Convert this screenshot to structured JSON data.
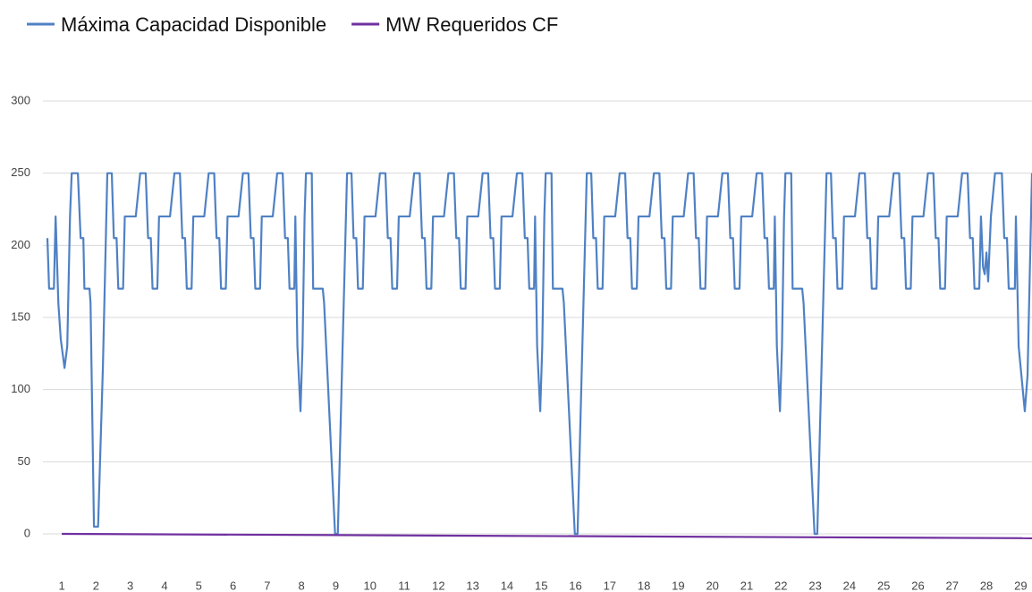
{
  "chart_data": {
    "type": "line",
    "legend": "top-left",
    "grid": true,
    "xlim": [
      0.58,
      29.33
    ],
    "xticks": [
      1,
      2,
      3,
      4,
      5,
      6,
      7,
      8,
      9,
      10,
      11,
      12,
      13,
      14,
      15,
      16,
      17,
      18,
      19,
      20,
      21,
      22,
      23,
      24,
      25,
      26,
      27,
      28,
      29
    ],
    "ylim": [
      -14,
      300
    ],
    "yticks": [
      0,
      50,
      100,
      150,
      200,
      250,
      300
    ],
    "series": [
      {
        "name": "Máxima Capacidad Disponible",
        "color": "#4f81c4",
        "x": [
          0.58,
          0.63,
          0.77,
          0.82,
          0.9,
          0.97,
          1.08,
          1.16,
          1.24,
          1.29,
          1.47,
          1.55,
          1.63,
          1.66,
          1.81,
          1.84,
          1.94,
          2.06,
          2.2,
          2.33,
          2.46,
          2.52,
          2.6,
          2.65,
          2.79,
          2.84,
          3.16,
          3.29,
          3.45,
          3.52,
          3.6,
          3.65,
          3.79,
          3.84,
          4.16,
          4.29,
          4.45,
          4.52,
          4.6,
          4.65,
          4.79,
          4.84,
          5.16,
          5.29,
          5.45,
          5.52,
          5.6,
          5.65,
          5.79,
          5.84,
          6.16,
          6.29,
          6.45,
          6.52,
          6.6,
          6.65,
          6.79,
          6.84,
          7.16,
          7.29,
          7.45,
          7.52,
          7.6,
          7.65,
          7.79,
          7.82,
          7.88,
          7.93,
          7.97,
          8.03,
          8.09,
          8.13,
          8.3,
          8.34,
          8.62,
          8.66,
          8.98,
          9.06,
          9.33,
          9.46,
          9.52,
          9.6,
          9.65,
          9.79,
          9.84,
          10.16,
          10.29,
          10.45,
          10.52,
          10.6,
          10.65,
          10.79,
          10.84,
          11.16,
          11.29,
          11.45,
          11.52,
          11.6,
          11.65,
          11.79,
          11.84,
          12.16,
          12.29,
          12.45,
          12.52,
          12.6,
          12.65,
          12.79,
          12.84,
          13.16,
          13.29,
          13.45,
          13.52,
          13.6,
          13.65,
          13.79,
          13.84,
          14.16,
          14.29,
          14.45,
          14.52,
          14.6,
          14.65,
          14.79,
          14.82,
          14.88,
          14.93,
          14.97,
          15.03,
          15.09,
          15.13,
          15.3,
          15.34,
          15.62,
          15.66,
          15.98,
          16.06,
          16.33,
          16.46,
          16.52,
          16.6,
          16.65,
          16.79,
          16.84,
          17.16,
          17.29,
          17.45,
          17.52,
          17.6,
          17.65,
          17.79,
          17.84,
          18.16,
          18.29,
          18.45,
          18.52,
          18.6,
          18.65,
          18.79,
          18.84,
          19.16,
          19.29,
          19.45,
          19.52,
          19.6,
          19.65,
          19.79,
          19.84,
          20.16,
          20.29,
          20.45,
          20.52,
          20.6,
          20.65,
          20.79,
          20.84,
          21.16,
          21.29,
          21.45,
          21.52,
          21.6,
          21.65,
          21.79,
          21.82,
          21.88,
          21.93,
          21.97,
          22.03,
          22.09,
          22.13,
          22.3,
          22.34,
          22.62,
          22.66,
          22.98,
          23.06,
          23.33,
          23.46,
          23.52,
          23.6,
          23.65,
          23.79,
          23.84,
          24.16,
          24.29,
          24.45,
          24.52,
          24.6,
          24.65,
          24.79,
          24.84,
          25.16,
          25.29,
          25.45,
          25.52,
          25.6,
          25.65,
          25.79,
          25.84,
          26.16,
          26.29,
          26.45,
          26.52,
          26.6,
          26.65,
          26.79,
          26.84,
          27.16,
          27.29,
          27.45,
          27.52,
          27.6,
          27.65,
          27.79,
          27.84,
          27.9,
          27.95,
          28.0,
          28.05,
          28.13,
          28.25,
          28.45,
          28.52,
          28.6,
          28.65,
          28.83,
          28.86,
          28.94,
          29.02,
          29.12,
          29.2,
          29.33
        ],
        "values": [
          205,
          170,
          170,
          220,
          160,
          135,
          115,
          130,
          220,
          250,
          250,
          205,
          205,
          170,
          170,
          160,
          5,
          5,
          115,
          250,
          250,
          205,
          205,
          170,
          170,
          220,
          220,
          250,
          250,
          205,
          205,
          170,
          170,
          220,
          220,
          250,
          250,
          205,
          205,
          170,
          170,
          220,
          220,
          250,
          250,
          205,
          205,
          170,
          170,
          220,
          220,
          250,
          250,
          205,
          205,
          170,
          170,
          220,
          220,
          250,
          250,
          205,
          205,
          170,
          170,
          220,
          130,
          105,
          85,
          130,
          220,
          250,
          250,
          170,
          170,
          160,
          0,
          0,
          250,
          250,
          205,
          205,
          170,
          170,
          220,
          220,
          250,
          250,
          205,
          205,
          170,
          170,
          220,
          220,
          250,
          250,
          205,
          205,
          170,
          170,
          220,
          220,
          250,
          250,
          205,
          205,
          170,
          170,
          220,
          220,
          250,
          250,
          205,
          205,
          170,
          170,
          220,
          220,
          250,
          250,
          205,
          205,
          170,
          170,
          220,
          130,
          105,
          85,
          130,
          220,
          250,
          250,
          170,
          170,
          160,
          0,
          0,
          250,
          250,
          205,
          205,
          170,
          170,
          220,
          220,
          250,
          250,
          205,
          205,
          170,
          170,
          220,
          220,
          250,
          250,
          205,
          205,
          170,
          170,
          220,
          220,
          250,
          250,
          205,
          205,
          170,
          170,
          220,
          220,
          250,
          250,
          205,
          205,
          170,
          170,
          220,
          220,
          250,
          250,
          205,
          205,
          170,
          170,
          220,
          130,
          105,
          85,
          130,
          220,
          250,
          250,
          170,
          170,
          160,
          0,
          0,
          250,
          250,
          205,
          205,
          170,
          170,
          220,
          220,
          250,
          250,
          205,
          205,
          170,
          170,
          220,
          220,
          250,
          250,
          205,
          205,
          170,
          170,
          220,
          220,
          250,
          250,
          205,
          205,
          170,
          170,
          220,
          220,
          250,
          250,
          205,
          205,
          170,
          170,
          220,
          185,
          180,
          195,
          175,
          220,
          250,
          250,
          205,
          205,
          170,
          170,
          220,
          130,
          110,
          85,
          110,
          250
        ]
      },
      {
        "name": "MW Requeridos CF",
        "color": "#7030a0",
        "x": [
          1,
          29.33
        ],
        "values": [
          0,
          -3
        ]
      }
    ]
  }
}
